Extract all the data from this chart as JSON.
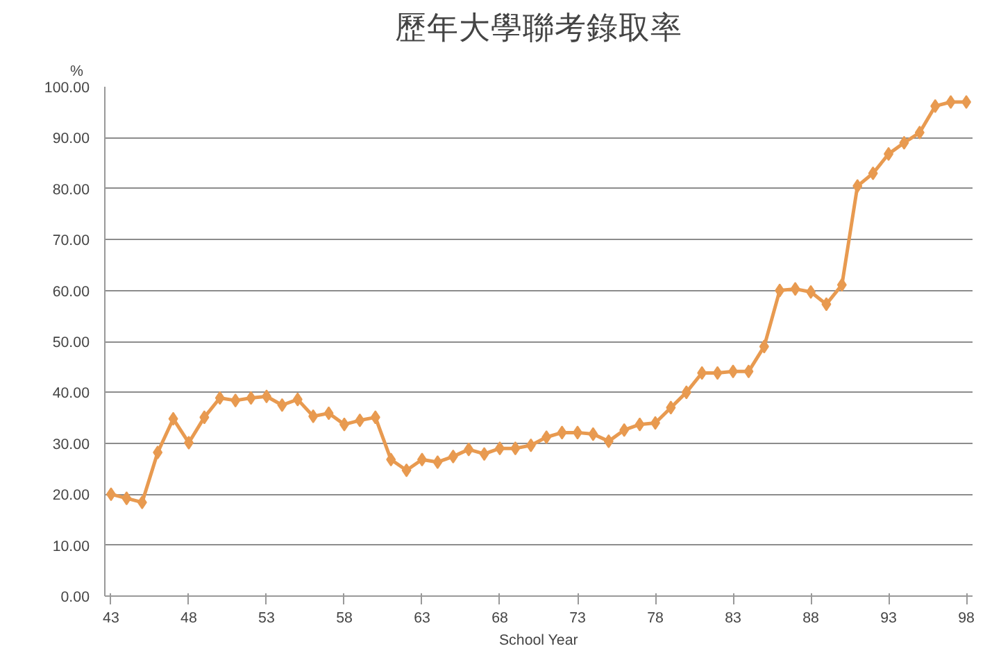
{
  "chart_data": {
    "type": "line",
    "title": "歷年大學聯考錄取率",
    "xlabel": "School Year",
    "ylabel": "%",
    "x": [
      43,
      44,
      45,
      46,
      47,
      48,
      49,
      50,
      51,
      52,
      53,
      54,
      55,
      56,
      57,
      58,
      59,
      60,
      61,
      62,
      63,
      64,
      65,
      66,
      67,
      68,
      69,
      70,
      71,
      72,
      73,
      74,
      75,
      76,
      77,
      78,
      79,
      80,
      81,
      82,
      83,
      84,
      85,
      86,
      87,
      88,
      89,
      90,
      91,
      92,
      93,
      94,
      95,
      96,
      97,
      98
    ],
    "series": [
      {
        "color": "#e89a50",
        "values": [
          20.0,
          19.2,
          18.4,
          28.2,
          34.8,
          30.1,
          35.1,
          38.9,
          38.4,
          38.9,
          39.2,
          37.5,
          38.6,
          35.3,
          35.9,
          33.7,
          34.5,
          35.1,
          26.8,
          24.7,
          26.8,
          26.3,
          27.4,
          28.8,
          27.9,
          29.0,
          29.0,
          29.6,
          31.2,
          32.1,
          32.1,
          31.8,
          30.4,
          32.6,
          33.7,
          34.0,
          37.0,
          40.0,
          43.8,
          43.8,
          44.1,
          44.1,
          49.0,
          60.0,
          60.3,
          59.7,
          57.3,
          61.1,
          80.5,
          83.0,
          86.8,
          89.0,
          91.0,
          96.2,
          97.0,
          97.0
        ]
      }
    ],
    "xlim": [
      42.6,
      98.4
    ],
    "xticks": [
      43,
      48,
      53,
      58,
      63,
      68,
      73,
      78,
      83,
      88,
      93,
      98
    ],
    "ylim": [
      0,
      100
    ],
    "yticks": [
      {
        "value": 0,
        "label": "0.00"
      },
      {
        "value": 10,
        "label": "10.00"
      },
      {
        "value": 20,
        "label": "20.00"
      },
      {
        "value": 30,
        "label": "30.00"
      },
      {
        "value": 40,
        "label": "40.00"
      },
      {
        "value": 50,
        "label": "50.00"
      },
      {
        "value": 60,
        "label": "60.00"
      },
      {
        "value": 70,
        "label": "70.00"
      },
      {
        "value": 80,
        "label": "80.00"
      },
      {
        "value": 90,
        "label": "90.00"
      },
      {
        "value": 100,
        "label": "100.00"
      }
    ],
    "grid": "y",
    "marker": "diamond",
    "line_style": "solid"
  }
}
